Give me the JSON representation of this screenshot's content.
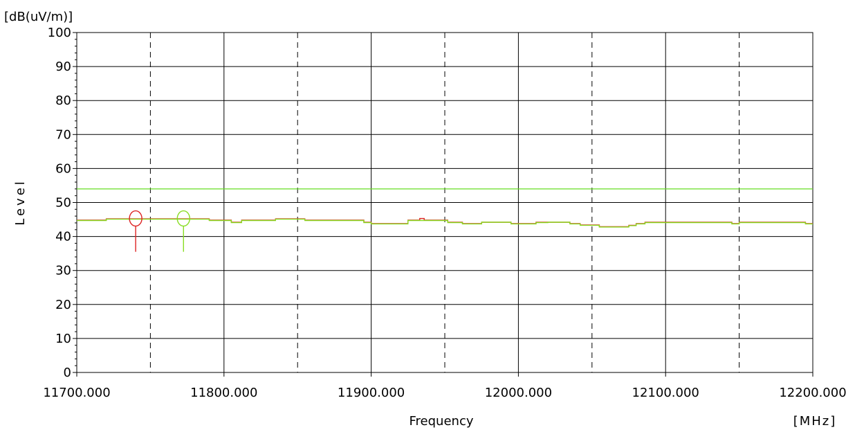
{
  "chart_data": {
    "type": "line",
    "ylabel": "Level",
    "yunit": "[dB(uV/m)]",
    "xlabel": "Frequency",
    "xunit": "[MHz]",
    "xlim": [
      11700,
      12200
    ],
    "ylim": [
      0,
      100
    ],
    "yticks": [
      "0",
      "10",
      "20",
      "30",
      "40",
      "50",
      "60",
      "70",
      "80",
      "90",
      "100"
    ],
    "xticks": [
      "11700.000",
      "11800.000",
      "11900.000",
      "12000.000",
      "12100.000",
      "12200.000"
    ],
    "grid": true,
    "limit_line": {
      "value": 54,
      "color": "#66dd22"
    },
    "series": [
      {
        "color": "#dd2222",
        "x": [
          11700,
          11720,
          11720,
          11790,
          11790,
          11805,
          11805,
          11812,
          11812,
          11835,
          11835,
          11855,
          11855,
          11895,
          11895,
          11900,
          11900,
          11925,
          11925,
          11933,
          11933,
          11936,
          11936,
          11945,
          11945,
          11952,
          11952,
          11962,
          11962,
          11975,
          11975,
          11995,
          11995,
          12012,
          12012,
          12020,
          12020,
          12035,
          12035,
          12042,
          12042,
          12055,
          12055,
          12075,
          12075,
          12080,
          12080,
          12086,
          12086,
          12108,
          12108,
          12145,
          12145,
          12150,
          12150,
          12154,
          12154,
          12195,
          12195,
          12200
        ],
        "y": [
          44.8,
          44.8,
          45.2,
          45.2,
          44.8,
          44.8,
          44.2,
          44.2,
          44.8,
          44.8,
          45.2,
          45.2,
          44.8,
          44.8,
          44.2,
          44.2,
          43.8,
          43.8,
          44.8,
          44.8,
          45.3,
          45.3,
          44.8,
          44.8,
          44.8,
          44.8,
          44.2,
          44.2,
          43.8,
          43.8,
          44.2,
          44.2,
          43.8,
          43.8,
          44.2,
          44.2,
          44.2,
          44.2,
          43.8,
          43.8,
          43.4,
          43.4,
          42.9,
          42.9,
          43.3,
          43.3,
          43.8,
          43.8,
          44.2,
          44.2,
          44.2,
          44.2,
          43.8,
          43.8,
          44.2,
          44.2,
          44.2,
          44.2,
          43.8,
          43.8
        ]
      },
      {
        "color": "#88dd22",
        "x": [
          11700,
          11720,
          11720,
          11790,
          11790,
          11805,
          11805,
          11812,
          11812,
          11835,
          11835,
          11855,
          11855,
          11895,
          11895,
          11900,
          11900,
          11925,
          11925,
          11945,
          11945,
          11952,
          11952,
          11962,
          11962,
          11975,
          11975,
          11995,
          11995,
          12012,
          12012,
          12020,
          12020,
          12035,
          12035,
          12042,
          12042,
          12055,
          12055,
          12075,
          12075,
          12080,
          12080,
          12086,
          12086,
          12108,
          12108,
          12145,
          12145,
          12150,
          12150,
          12154,
          12154,
          12195,
          12195,
          12200
        ],
        "y": [
          44.7,
          44.7,
          45.1,
          45.1,
          44.7,
          44.7,
          44.1,
          44.1,
          44.7,
          44.7,
          45.1,
          45.1,
          44.7,
          44.7,
          44.1,
          44.1,
          43.7,
          43.7,
          44.7,
          44.7,
          44.7,
          44.7,
          44.1,
          44.1,
          43.7,
          43.7,
          44.2,
          44.2,
          43.7,
          43.7,
          44.1,
          44.1,
          44.2,
          44.2,
          43.7,
          43.7,
          43.3,
          43.3,
          42.8,
          42.8,
          43.2,
          43.2,
          43.7,
          43.7,
          44.1,
          44.1,
          44.1,
          44.1,
          43.7,
          43.7,
          44.1,
          44.1,
          44.1,
          44.1,
          43.7,
          43.7
        ]
      }
    ],
    "markers": [
      {
        "x": 11740.0,
        "y": 45.3,
        "stem_bottom": 35.5,
        "color": "#dd2222"
      },
      {
        "x": 11772.5,
        "y": 45.3,
        "stem_bottom": 35.5,
        "color": "#88dd22"
      }
    ]
  }
}
